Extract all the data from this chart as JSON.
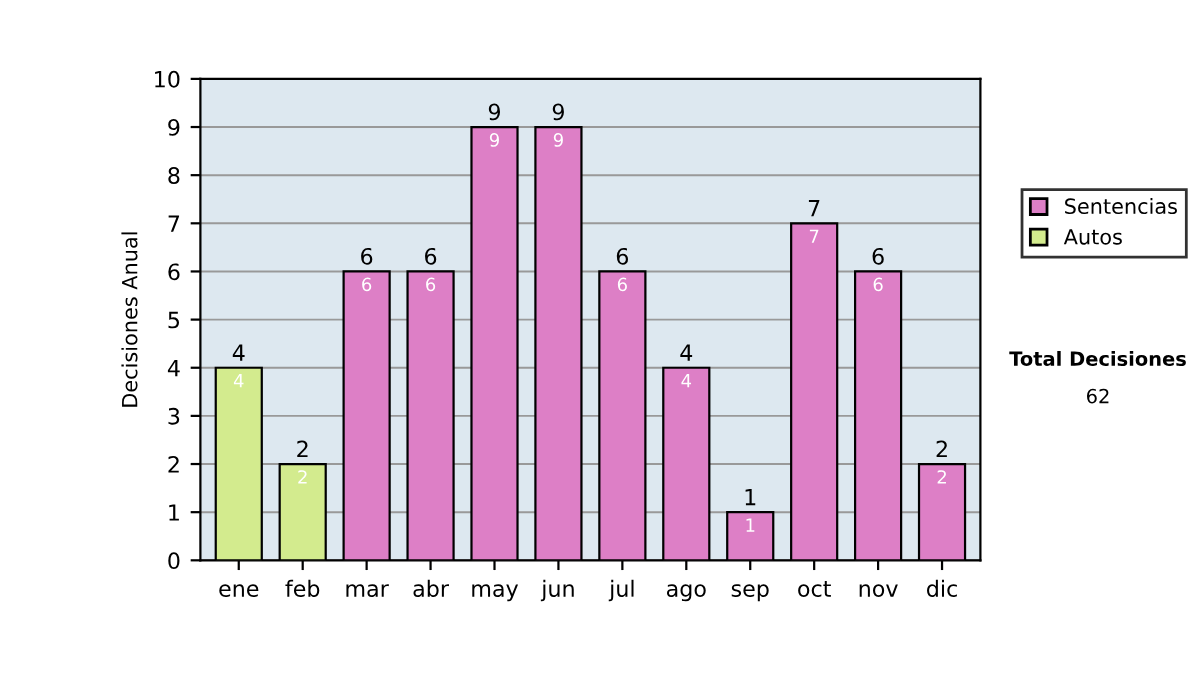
{
  "chart_data": {
    "type": "bar",
    "ylabel": "Decisiones Anual",
    "categories": [
      "ene",
      "feb",
      "mar",
      "abr",
      "may",
      "jun",
      "jul",
      "ago",
      "sep",
      "oct",
      "nov",
      "dic"
    ],
    "series": [
      {
        "name": "Sentencias",
        "color": "#dd7fc6",
        "values": [
          null,
          null,
          6,
          6,
          9,
          9,
          6,
          4,
          1,
          7,
          6,
          2
        ],
        "value_labels": [
          null,
          null,
          "6",
          "6",
          "9",
          "9",
          "6",
          "4",
          "1",
          "7",
          "6",
          "2"
        ]
      },
      {
        "name": "Autos",
        "color": "#d3eb8e",
        "values": [
          4,
          2,
          null,
          null,
          null,
          null,
          null,
          null,
          null,
          null,
          null,
          null
        ],
        "value_labels": [
          "4",
          "2",
          null,
          null,
          null,
          null,
          null,
          null,
          null,
          null,
          null,
          null
        ]
      }
    ],
    "ylim": [
      0,
      10
    ],
    "yticks": [
      0,
      1,
      2,
      3,
      4,
      5,
      6,
      7,
      8,
      9,
      10
    ],
    "grid": "y",
    "legend": "right",
    "annotations": [
      "Total Decisiones",
      "62",
      {
        "text": "4",
        "x": "ene",
        "y": 4
      },
      {
        "text": "2",
        "x": "feb",
        "y": 2
      },
      {
        "text": "6",
        "x": "mar",
        "y": 6
      },
      {
        "text": "6",
        "x": "abr",
        "y": 6
      },
      {
        "text": "9",
        "x": "may",
        "y": 9
      },
      {
        "text": "9",
        "x": "jun",
        "y": 9
      },
      {
        "text": "6",
        "x": "jul",
        "y": 6
      },
      {
        "text": "4",
        "x": "ago",
        "y": 4
      },
      {
        "text": "1",
        "x": "sep",
        "y": 1
      },
      {
        "text": "7",
        "x": "oct",
        "y": 7
      },
      {
        "text": "6",
        "x": "nov",
        "y": 6
      },
      {
        "text": "2",
        "x": "dic",
        "y": 2
      }
    ]
  }
}
